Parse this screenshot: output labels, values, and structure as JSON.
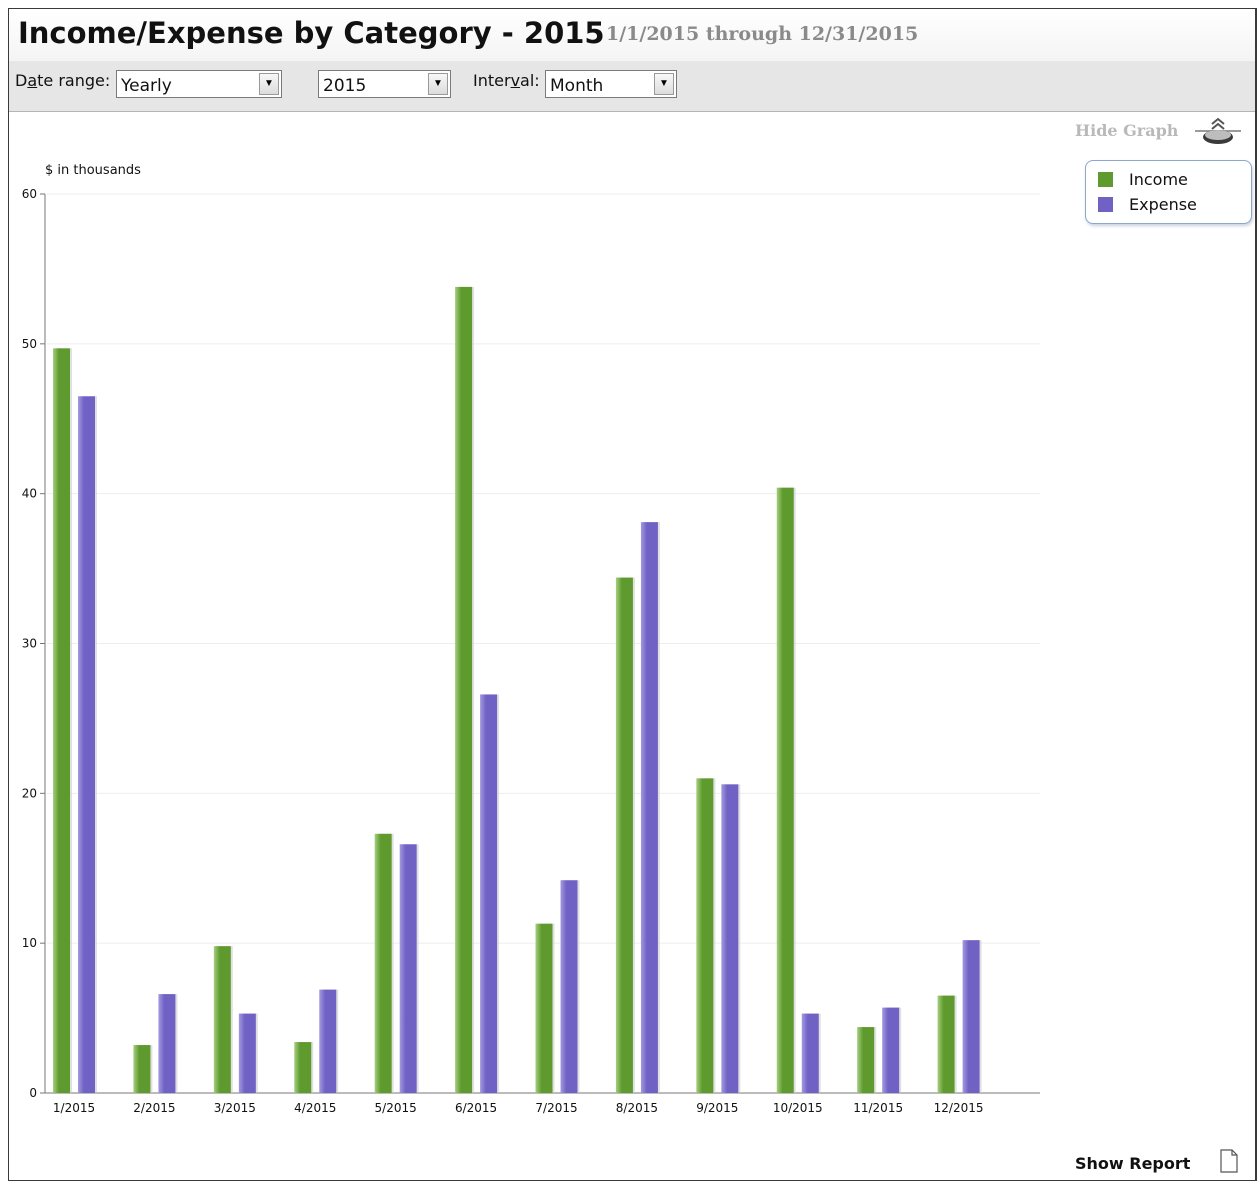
{
  "header": {
    "title": "Income/Expense by Category - 2015",
    "date_range_text": "1/1/2015 through 12/31/2015"
  },
  "toolbar": {
    "date_range_label_prefix": "D",
    "date_range_label_underline": "a",
    "date_range_label_suffix": "te range:",
    "date_range_value": "Yearly",
    "year_value": "2015",
    "interval_label_prefix": "Inter",
    "interval_label_underline": "v",
    "interval_label_suffix": "al:",
    "interval_value": "Month"
  },
  "hide_graph_label": "Hide Graph",
  "show_report_label": "Show Report",
  "colors": {
    "income": "#5f9a2e",
    "expense": "#6f62c4",
    "income_light": "#a5cf7f",
    "expense_light": "#a39ae0"
  },
  "icons": {
    "hide_graph": "chevron-up-icon",
    "show_report": "document-icon"
  },
  "chart_data": {
    "type": "bar",
    "ylabel": "$ in thousands",
    "ylim": [
      0,
      60
    ],
    "yticks": [
      0,
      10,
      20,
      30,
      40,
      50,
      60
    ],
    "categories": [
      "1/2015",
      "2/2015",
      "3/2015",
      "4/2015",
      "5/2015",
      "6/2015",
      "7/2015",
      "8/2015",
      "9/2015",
      "10/2015",
      "11/2015",
      "12/2015"
    ],
    "series": [
      {
        "name": "Income",
        "values": [
          49.7,
          3.2,
          9.8,
          3.4,
          17.3,
          53.8,
          11.3,
          34.4,
          21.0,
          40.4,
          4.4,
          6.5
        ]
      },
      {
        "name": "Expense",
        "values": [
          46.5,
          6.6,
          5.3,
          6.9,
          16.6,
          26.6,
          14.2,
          38.1,
          20.6,
          5.3,
          5.7,
          10.2
        ]
      }
    ],
    "legend_position": "top-right",
    "grid": true
  }
}
